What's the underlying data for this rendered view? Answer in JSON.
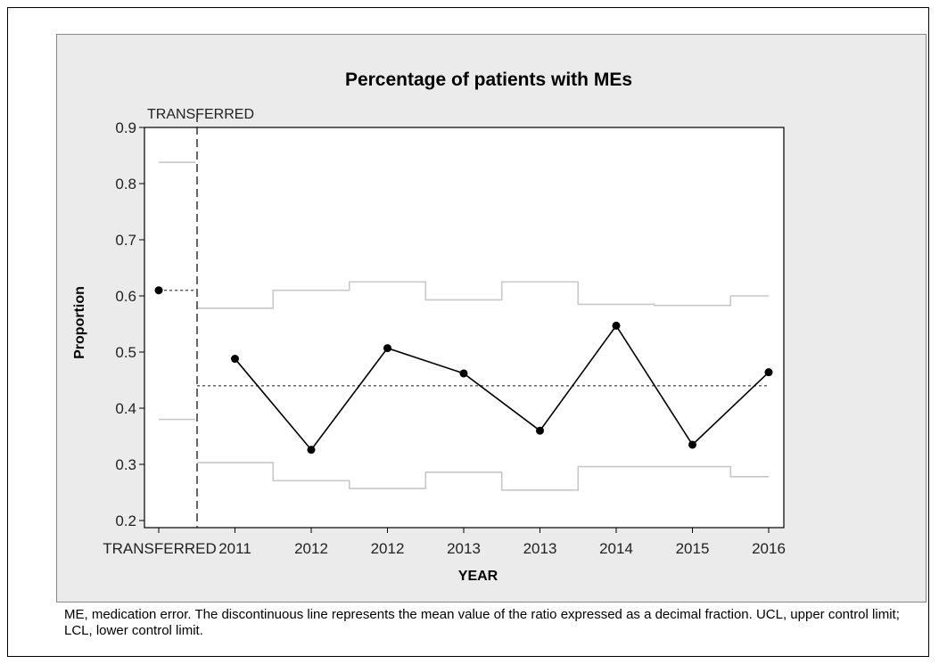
{
  "chart_data": {
    "type": "line",
    "subtype": "p-chart (statistical process control)",
    "title": "Percentage of patients with MEs",
    "xlabel": "YEAR",
    "ylabel": "Proportion",
    "ylim": [
      0.2,
      0.9
    ],
    "yticks": [
      0.2,
      0.3,
      0.4,
      0.5,
      0.6,
      0.7,
      0.8,
      0.9
    ],
    "categories": [
      "TRANSFERRED",
      "2011",
      "2012",
      "2012",
      "2013",
      "2013",
      "2014",
      "2015",
      "2016"
    ],
    "stage_label": "TRANSFERRED",
    "series": [
      {
        "values": [
          0.61,
          0.488,
          0.326,
          0.507,
          0.462,
          0.36,
          0.547,
          0.335,
          0.464
        ]
      }
    ],
    "stages": [
      {
        "label": "TRANSFERRED",
        "indices": [
          0
        ],
        "center_line": 0.61
      },
      {
        "label": "",
        "indices": [
          1,
          2,
          3,
          4,
          5,
          6,
          7,
          8
        ],
        "center_line": 0.44
      }
    ],
    "ucl": [
      0.838,
      0.578,
      0.61,
      0.625,
      0.593,
      0.625,
      0.585,
      0.583,
      0.6
    ],
    "lcl": [
      0.38,
      0.303,
      0.271,
      0.257,
      0.286,
      0.254,
      0.296,
      0.296,
      0.278
    ],
    "grid": false,
    "colors": {
      "points": "#000000",
      "limits": "#c8c8c8",
      "center": "#555555",
      "panel": "#ebebeb"
    }
  },
  "caption": "ME, medication error. The discontinuous line represents the mean value of the ratio expressed as a decimal fraction. UCL, upper control limit; LCL, lower control limit."
}
